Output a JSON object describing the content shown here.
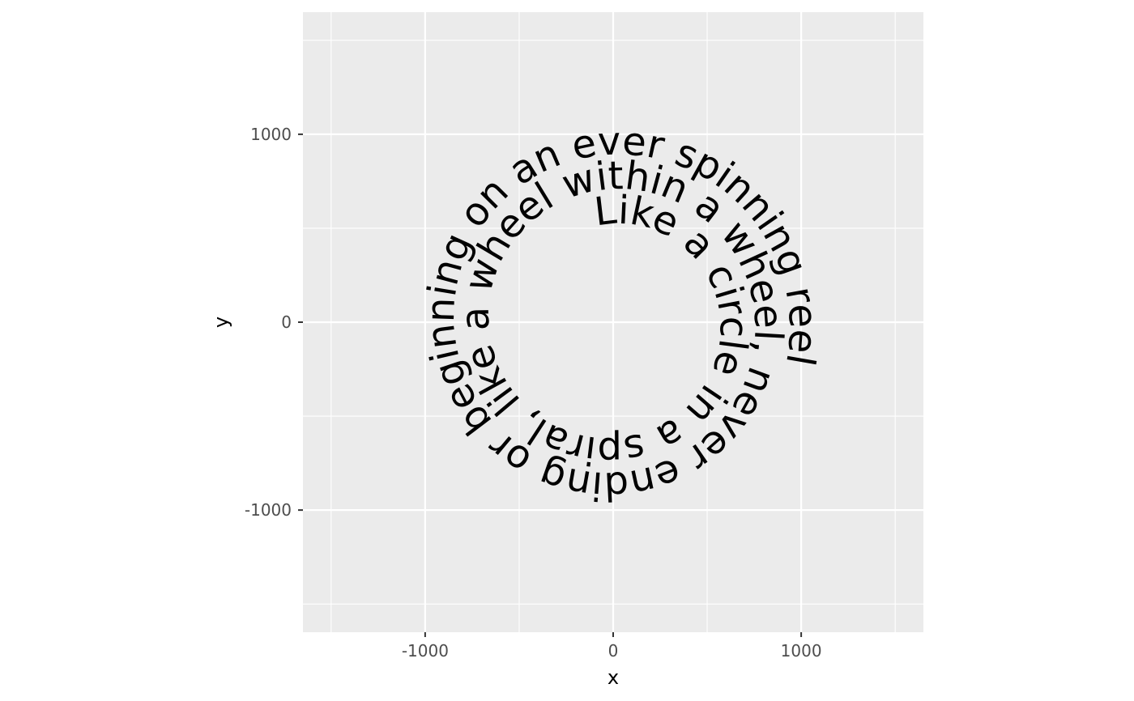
{
  "chart_data": {
    "type": "text-path",
    "title": "",
    "xlabel": "x",
    "ylabel": "y",
    "xlim": [
      -1650,
      1650
    ],
    "ylim": [
      -1650,
      1650
    ],
    "x_ticks": [
      -1000,
      0,
      1000
    ],
    "x_tick_labels": [
      "-1000",
      "0",
      "1000"
    ],
    "y_ticks": [
      -1000,
      0,
      1000
    ],
    "y_tick_labels": [
      "-1000",
      "0",
      "1000"
    ],
    "grid": true,
    "panel_color": "#ebebeb",
    "grid_color": "#ffffff",
    "text_color": "#000000",
    "spiral_text": "Like a circle in a spiral, like a wheel within a wheel, never ending or beginning on an ever spinning reel",
    "spiral": {
      "center": [
        0,
        0
      ],
      "start_radius": 520,
      "end_radius": 1090,
      "start_angle_deg": 100,
      "end_angle_deg": -1015
    }
  }
}
